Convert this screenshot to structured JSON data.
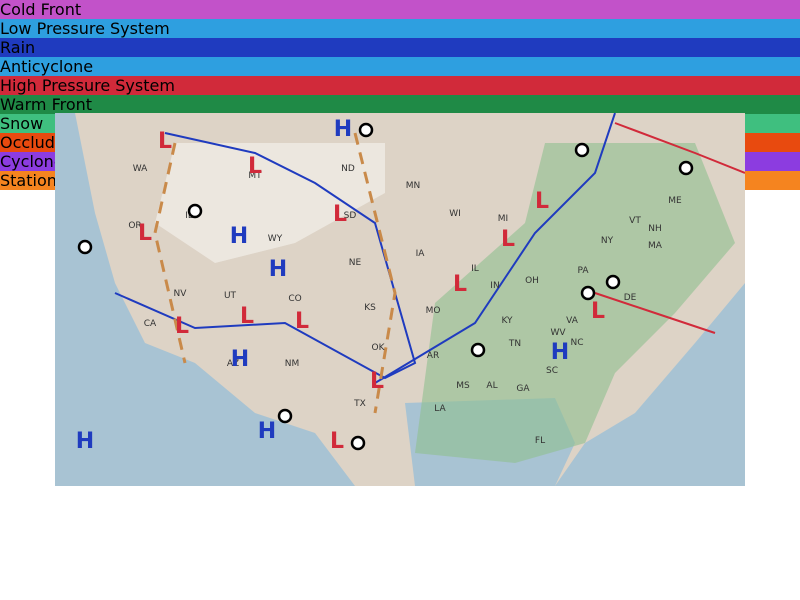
{
  "tiles_top": [
    "Cold Front",
    "Low Pressure System",
    "Rain",
    "Anticyclone",
    "High Pressure System"
  ],
  "tiles_bottom": [
    "Warm Front",
    "Snow",
    "Occluded Front",
    "Cyclone",
    "Stationary Front"
  ],
  "map": {
    "states": [
      "WA",
      "OR",
      "ID",
      "MT",
      "ND",
      "SD",
      "WY",
      "NE",
      "NV",
      "UT",
      "CO",
      "CA",
      "AZ",
      "NM",
      "KS",
      "OK",
      "TX",
      "MN",
      "IA",
      "MO",
      "AR",
      "LA",
      "WI",
      "MI",
      "IL",
      "IN",
      "OH",
      "KY",
      "TN",
      "MS",
      "AL",
      "GA",
      "FL",
      "SC",
      "NC",
      "VA",
      "WV",
      "PA",
      "NY",
      "ME",
      "VT",
      "NH",
      "MA",
      "DE"
    ],
    "pressure": [
      "H",
      "H",
      "H",
      "H",
      "H",
      "H",
      "H",
      "L",
      "L",
      "L",
      "L",
      "L",
      "L",
      "L",
      "L",
      "L",
      "L",
      "L",
      "L",
      "L"
    ]
  }
}
